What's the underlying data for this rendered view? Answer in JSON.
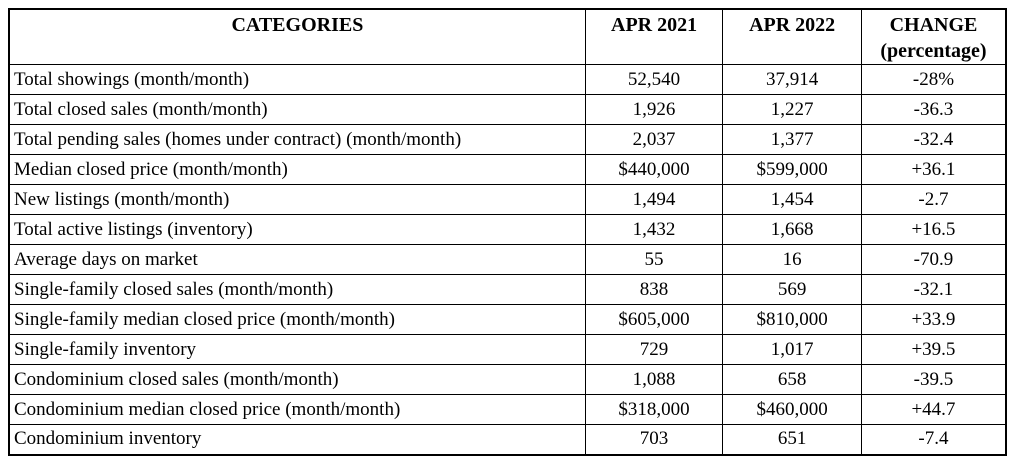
{
  "table": {
    "header": {
      "categories": "CATEGORIES",
      "apr2021": "APR 2021",
      "apr2022": "APR 2022",
      "change_line1": "CHANGE",
      "change_line2": "(percentage)"
    },
    "rows": [
      {
        "category": "Total showings (month/month)",
        "apr2021": "52,540",
        "apr2022": "37,914",
        "change": "-28%"
      },
      {
        "category": "Total closed sales (month/month)",
        "apr2021": "1,926",
        "apr2022": "1,227",
        "change": "-36.3"
      },
      {
        "category": "Total pending sales (homes under contract) (month/month)",
        "apr2021": "2,037",
        "apr2022": "1,377",
        "change": "-32.4"
      },
      {
        "category": "Median closed price (month/month)",
        "apr2021": "$440,000",
        "apr2022": "$599,000",
        "change": "+36.1"
      },
      {
        "category": "New listings (month/month)",
        "apr2021": "1,494",
        "apr2022": "1,454",
        "change": "-2.7"
      },
      {
        "category": "Total active listings (inventory)",
        "apr2021": "1,432",
        "apr2022": "1,668",
        "change": "+16.5"
      },
      {
        "category": "Average days on market",
        "apr2021": "55",
        "apr2022": "16",
        "change": "-70.9"
      },
      {
        "category": "Single-family closed sales (month/month)",
        "apr2021": "838",
        "apr2022": "569",
        "change": "-32.1"
      },
      {
        "category": "Single-family median closed price (month/month)",
        "apr2021": "$605,000",
        "apr2022": "$810,000",
        "change": "+33.9"
      },
      {
        "category": "Single-family inventory",
        "apr2021": "729",
        "apr2022": "1,017",
        "change": "+39.5"
      },
      {
        "category": "Condominium closed sales (month/month)",
        "apr2021": "1,088",
        "apr2022": "658",
        "change": "-39.5"
      },
      {
        "category": "Condominium median closed price (month/month)",
        "apr2021": "$318,000",
        "apr2022": "$460,000",
        "change": "+44.7"
      },
      {
        "category": "Condominium inventory",
        "apr2021": "703",
        "apr2022": "651",
        "change": "-7.4"
      }
    ]
  }
}
